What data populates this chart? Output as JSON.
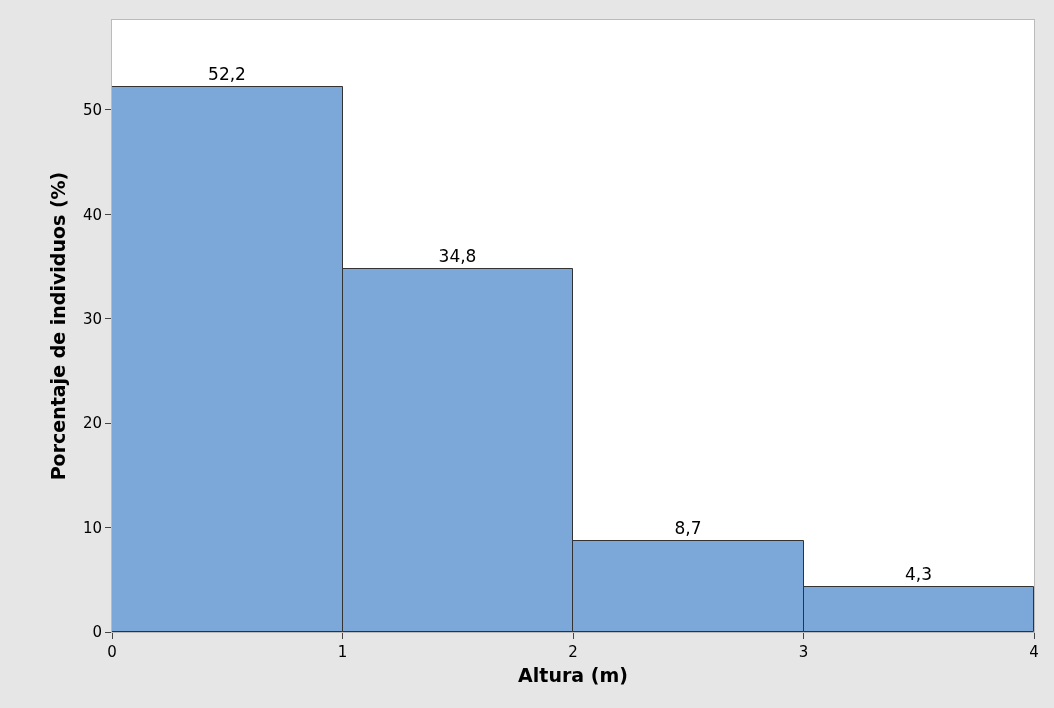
{
  "chart_data": {
    "type": "histogram",
    "xlabel": "Altura (m)",
    "ylabel": "Porcentaje de individuos (%)",
    "bins": [
      0,
      1,
      2,
      3,
      4
    ],
    "values": [
      52.2,
      34.8,
      8.7,
      4.3
    ],
    "value_labels": [
      "52,2",
      "34,8",
      "8,7",
      "4,3"
    ],
    "color": "#7ba7d9",
    "xlim": [
      0,
      4
    ],
    "xticks": [
      0,
      1,
      2,
      3,
      4
    ],
    "ylim": [
      0,
      58.6
    ],
    "yticks": [
      0,
      10,
      20,
      30,
      40,
      50
    ],
    "grid": false,
    "legend": false
  }
}
